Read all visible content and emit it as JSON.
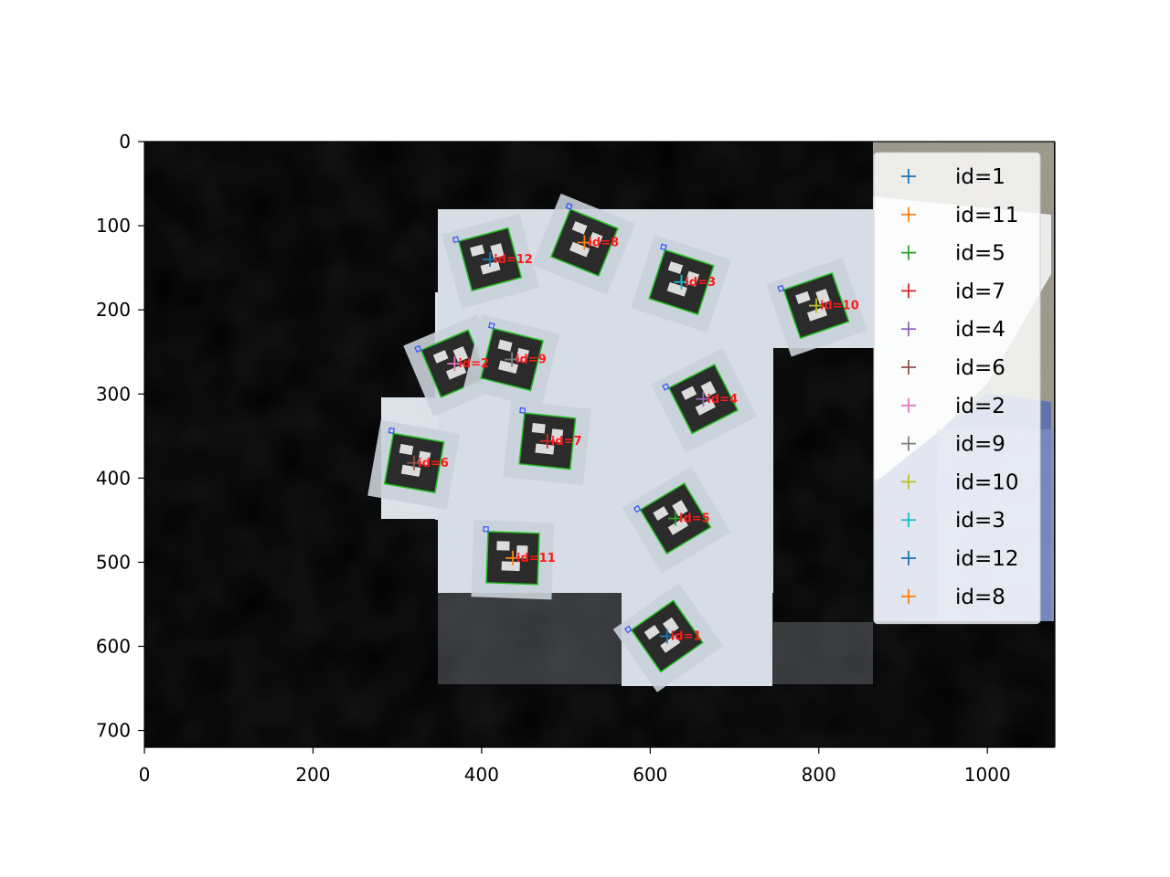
{
  "chart_data": {
    "type": "scatter",
    "title": "",
    "xlabel": "",
    "ylabel": "",
    "xlim": [
      0,
      1080
    ],
    "ylim": [
      720,
      0
    ],
    "x_ticks": [
      0,
      200,
      400,
      600,
      800,
      1000
    ],
    "y_ticks": [
      0,
      100,
      200,
      300,
      400,
      500,
      600,
      700
    ],
    "grid": false,
    "legend_placement": "top-right",
    "background": "photo-mosaic",
    "series": [
      {
        "name": "id=1",
        "color": "#1f77b4",
        "x": [
          620
        ],
        "y": [
          588
        ],
        "label": "id=1"
      },
      {
        "name": "id=11",
        "color": "#ff7f0e",
        "x": [
          437
        ],
        "y": [
          495
        ],
        "label": "id=11"
      },
      {
        "name": "id=5",
        "color": "#2ca02c",
        "x": [
          630
        ],
        "y": [
          448
        ],
        "label": "id=5"
      },
      {
        "name": "id=7",
        "color": "#d62728",
        "x": [
          478
        ],
        "y": [
          356
        ],
        "label": "id=7"
      },
      {
        "name": "id=4",
        "color": "#9467bd",
        "x": [
          663
        ],
        "y": [
          306
        ],
        "label": "id=4"
      },
      {
        "name": "id=6",
        "color": "#8c564b",
        "x": [
          320
        ],
        "y": [
          382
        ],
        "label": "id=6"
      },
      {
        "name": "id=2",
        "color": "#e377c2",
        "x": [
          368
        ],
        "y": [
          264
        ],
        "label": "id=2"
      },
      {
        "name": "id=9",
        "color": "#7f7f7f",
        "x": [
          436
        ],
        "y": [
          259
        ],
        "label": "id=9"
      },
      {
        "name": "id=10",
        "color": "#bcbd22",
        "x": [
          797
        ],
        "y": [
          195
        ],
        "label": "id=10"
      },
      {
        "name": "id=3",
        "color": "#17becf",
        "x": [
          637
        ],
        "y": [
          167
        ],
        "label": "id=3"
      },
      {
        "name": "id=12",
        "color": "#1f77b4",
        "x": [
          410
        ],
        "y": [
          140
        ],
        "label": "id=12"
      },
      {
        "name": "id=8",
        "color": "#ff7f0e",
        "x": [
          522
        ],
        "y": [
          120
        ],
        "label": "id=8"
      }
    ]
  }
}
